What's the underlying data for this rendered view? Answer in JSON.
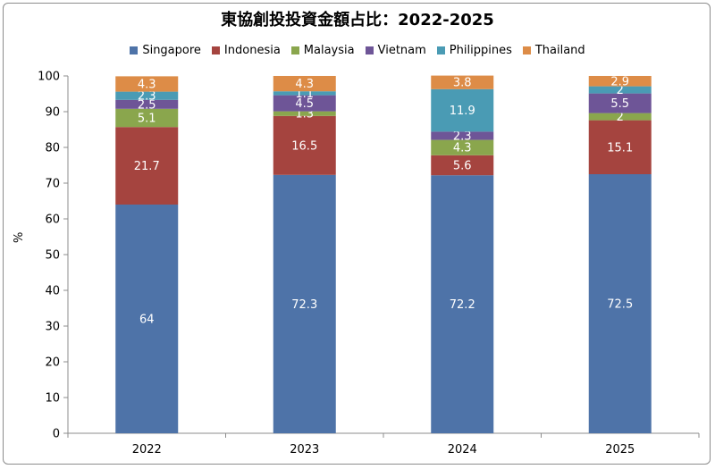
{
  "chart_data": {
    "type": "bar",
    "stacked": true,
    "title": "東協創投投資金額占比：2022-2025",
    "ylabel": "%",
    "xlabel": "",
    "ylim": [
      0,
      100
    ],
    "yticks": [
      0,
      10,
      20,
      30,
      40,
      50,
      60,
      70,
      80,
      90,
      100
    ],
    "categories": [
      "2022",
      "2023",
      "2024",
      "2025"
    ],
    "legend_position": "top",
    "series": [
      {
        "name": "Singapore",
        "color": "#4e73a8",
        "values": [
          64,
          72.3,
          72.2,
          72.5
        ]
      },
      {
        "name": "Indonesia",
        "color": "#a5443f",
        "values": [
          21.7,
          16.5,
          5.6,
          15.1
        ]
      },
      {
        "name": "Malaysia",
        "color": "#8aa64d",
        "values": [
          5.1,
          1.3,
          4.3,
          2
        ]
      },
      {
        "name": "Vietnam",
        "color": "#6e5597",
        "values": [
          2.5,
          4.5,
          2.3,
          5.5
        ]
      },
      {
        "name": "Philippines",
        "color": "#4a9bb4",
        "values": [
          2.3,
          1.1,
          11.9,
          2
        ]
      },
      {
        "name": "Thailand",
        "color": "#dd8c47",
        "values": [
          4.3,
          4.3,
          3.8,
          2.9
        ]
      }
    ]
  }
}
